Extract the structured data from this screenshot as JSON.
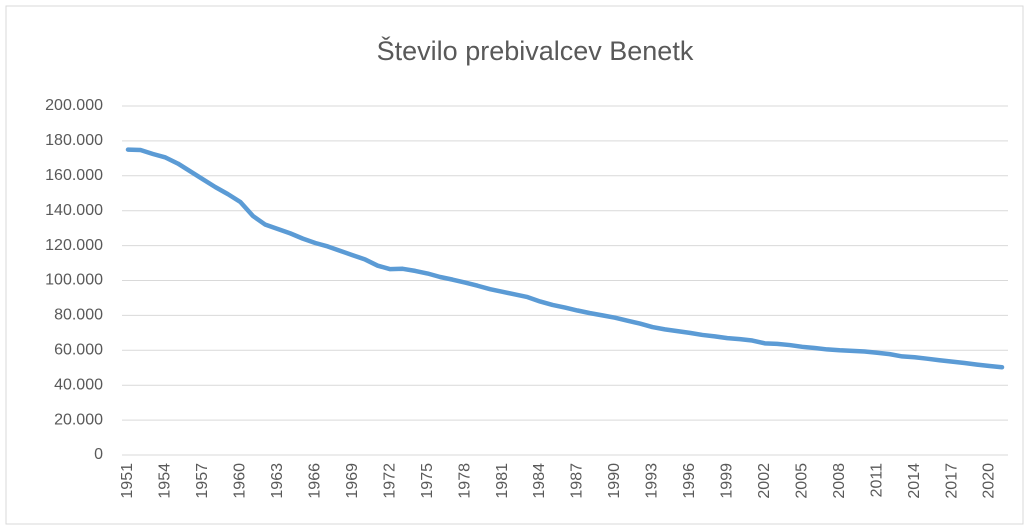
{
  "chart_data": {
    "type": "line",
    "title": "Število prebivalcev Benetk",
    "x": [
      1951,
      1952,
      1953,
      1954,
      1955,
      1956,
      1957,
      1958,
      1959,
      1960,
      1961,
      1962,
      1963,
      1964,
      1965,
      1966,
      1967,
      1968,
      1969,
      1970,
      1971,
      1972,
      1973,
      1974,
      1975,
      1976,
      1977,
      1978,
      1979,
      1980,
      1981,
      1982,
      1983,
      1984,
      1985,
      1986,
      1987,
      1988,
      1989,
      1990,
      1991,
      1992,
      1993,
      1994,
      1995,
      1996,
      1997,
      1998,
      1999,
      2000,
      2001,
      2002,
      2003,
      2004,
      2005,
      2006,
      2007,
      2008,
      2009,
      2010,
      2011,
      2012,
      2013,
      2014,
      2015,
      2016,
      2017,
      2018,
      2019,
      2020,
      2021
    ],
    "series": [
      {
        "name": "Število prebivalcev",
        "color": "#5b9bd5",
        "values": [
          175000,
          174800,
          172500,
          170500,
          167000,
          162500,
          158000,
          153500,
          149500,
          145000,
          137000,
          132000,
          129500,
          127000,
          124000,
          121500,
          119500,
          117000,
          114500,
          112000,
          108500,
          106500,
          106700,
          105500,
          104000,
          102000,
          100500,
          98800,
          97000,
          95000,
          93500,
          92000,
          90500,
          88000,
          86000,
          84500,
          82800,
          81300,
          80000,
          78700,
          77000,
          75300,
          73300,
          72000,
          71000,
          70000,
          68800,
          68000,
          67000,
          66400,
          65600,
          64000,
          63700,
          63000,
          62000,
          61300,
          60500,
          60000,
          59700,
          59300,
          58600,
          57800,
          56500,
          56000,
          55200,
          54300,
          53500,
          52700,
          51800,
          51000,
          50300
        ]
      }
    ],
    "xlim": [
      1951,
      2021
    ],
    "xticks": [
      1951,
      1954,
      1957,
      1960,
      1963,
      1966,
      1969,
      1972,
      1975,
      1978,
      1981,
      1984,
      1987,
      1990,
      1993,
      1996,
      1999,
      2002,
      2005,
      2008,
      2011,
      2014,
      2017,
      2020
    ],
    "ylim": [
      0,
      200000
    ],
    "yticks": [
      0,
      {
        "value": 20000,
        "label": "20.000"
      },
      {
        "value": 40000,
        "label": "40.000"
      },
      {
        "value": 60000,
        "label": "60.000"
      },
      {
        "value": 80000,
        "label": "80.000"
      },
      {
        "value": 100000,
        "label": "100.000"
      },
      {
        "value": 120000,
        "label": "120.000"
      },
      {
        "value": 140000,
        "label": "140.000"
      },
      {
        "value": 160000,
        "label": "160.000"
      },
      {
        "value": 180000,
        "label": "180.000"
      },
      {
        "value": 200000,
        "label": "200.000"
      }
    ],
    "grid": true
  }
}
